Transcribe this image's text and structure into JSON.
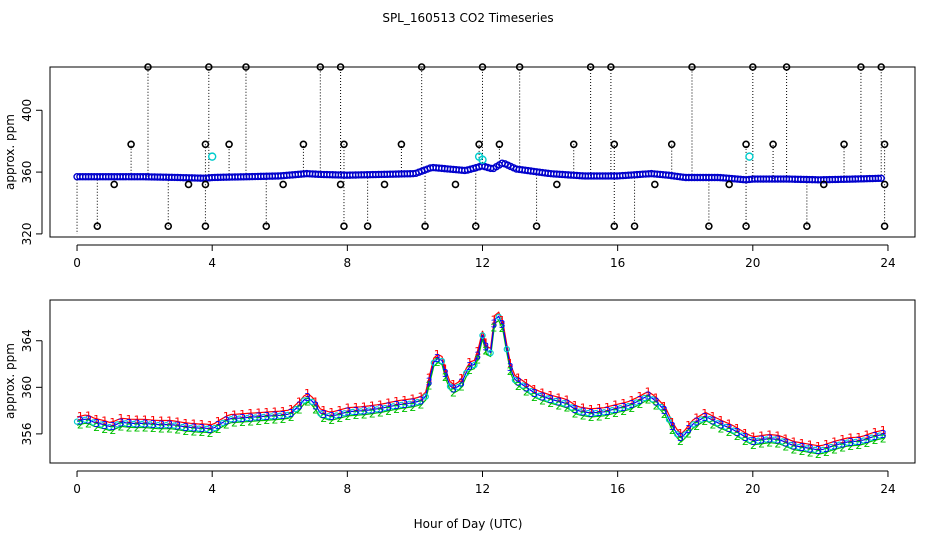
{
  "title": "SPL_160513  CO2 Timeseries",
  "xlabel": "Hour of Day (UTC)",
  "chart_data": [
    {
      "type": "scatter",
      "panel": "top",
      "ylabel": "approx. ppm",
      "xlim": [
        -0.8,
        24.8
      ],
      "ylim": [
        318,
        428
      ],
      "xticks": [
        0,
        4,
        8,
        12,
        16,
        20,
        24
      ],
      "yticks": [
        320,
        360,
        400
      ],
      "baseline": [
        [
          0,
          357
        ],
        [
          1,
          357
        ],
        [
          2,
          357
        ],
        [
          3,
          356.5
        ],
        [
          3.8,
          356
        ],
        [
          4,
          356.5
        ],
        [
          5,
          357
        ],
        [
          6,
          357.5
        ],
        [
          6.8,
          359
        ],
        [
          7.2,
          358.5
        ],
        [
          8,
          358
        ],
        [
          9,
          358.5
        ],
        [
          10,
          359
        ],
        [
          10.5,
          363
        ],
        [
          11,
          362
        ],
        [
          11.5,
          361
        ],
        [
          12,
          364
        ],
        [
          12.3,
          362
        ],
        [
          12.6,
          366
        ],
        [
          13,
          362
        ],
        [
          14,
          359
        ],
        [
          15,
          357.5
        ],
        [
          16,
          357.5
        ],
        [
          17,
          359
        ],
        [
          17.5,
          358
        ],
        [
          18,
          356.5
        ],
        [
          19,
          356.5
        ],
        [
          19.8,
          355
        ],
        [
          20,
          355.5
        ],
        [
          21,
          355.5
        ],
        [
          22,
          355
        ],
        [
          23,
          355.5
        ],
        [
          23.8,
          356
        ]
      ],
      "outliers_high": [
        [
          2.1,
          428
        ],
        [
          3.9,
          428
        ],
        [
          5.0,
          428
        ],
        [
          7.2,
          428
        ],
        [
          7.8,
          428
        ],
        [
          10.2,
          428
        ],
        [
          12.0,
          428
        ],
        [
          13.1,
          428
        ],
        [
          15.2,
          428
        ],
        [
          15.8,
          428
        ],
        [
          18.2,
          428
        ],
        [
          20.0,
          428
        ],
        [
          21.0,
          428
        ],
        [
          23.2,
          428
        ],
        [
          23.8,
          428
        ]
      ],
      "outliers_mid": [
        [
          1.6,
          378
        ],
        [
          3.8,
          378
        ],
        [
          4.5,
          378
        ],
        [
          6.7,
          378
        ],
        [
          7.9,
          378
        ],
        [
          9.6,
          378
        ],
        [
          11.9,
          378
        ],
        [
          12.5,
          378
        ],
        [
          14.7,
          378
        ],
        [
          15.9,
          378
        ],
        [
          17.6,
          378
        ],
        [
          19.8,
          378
        ],
        [
          20.6,
          378
        ],
        [
          22.7,
          378
        ],
        [
          23.9,
          378
        ]
      ],
      "outliers_low": [
        [
          0.6,
          325
        ],
        [
          2.7,
          325
        ],
        [
          3.8,
          325
        ],
        [
          5.6,
          325
        ],
        [
          7.9,
          325
        ],
        [
          8.6,
          325
        ],
        [
          10.3,
          325
        ],
        [
          11.8,
          325
        ],
        [
          13.6,
          325
        ],
        [
          15.9,
          325
        ],
        [
          16.5,
          325
        ],
        [
          18.7,
          325
        ],
        [
          19.8,
          325
        ],
        [
          21.6,
          325
        ],
        [
          23.9,
          325
        ]
      ],
      "dips": [
        [
          1.1,
          352
        ],
        [
          3.3,
          352
        ],
        [
          3.8,
          352
        ],
        [
          6.1,
          352
        ],
        [
          7.8,
          352
        ],
        [
          9.1,
          352
        ],
        [
          11.2,
          352
        ],
        [
          14.2,
          352
        ],
        [
          17.1,
          352
        ],
        [
          19.3,
          352
        ],
        [
          22.1,
          352
        ],
        [
          23.9,
          352
        ]
      ],
      "cyan_points": [
        [
          4.0,
          370
        ],
        [
          11.9,
          370
        ],
        [
          12.0,
          368
        ],
        [
          19.9,
          370
        ]
      ]
    },
    {
      "type": "line",
      "panel": "bottom",
      "ylabel": "approx. ppm",
      "xlim": [
        -0.8,
        24.8
      ],
      "ylim": [
        353.5,
        367.5
      ],
      "xticks": [
        0,
        4,
        8,
        12,
        16,
        20,
        24
      ],
      "yticks": [
        356,
        360,
        364
      ],
      "series": [
        {
          "name": "1",
          "color": "#ff0000",
          "marker": "1",
          "offset": 0.35
        },
        {
          "name": "2",
          "color": "#00c000",
          "marker": "2",
          "offset": -0.35
        },
        {
          "name": "3",
          "color": "#0000ff",
          "marker": "3",
          "offset": 0.0
        }
      ],
      "points": [
        [
          0,
          357.1
        ],
        [
          0.3,
          357.3
        ],
        [
          0.5,
          357.0
        ],
        [
          0.8,
          356.8
        ],
        [
          1.0,
          356.6
        ],
        [
          1.3,
          357.0
        ],
        [
          1.6,
          356.9
        ],
        [
          2.0,
          356.9
        ],
        [
          2.4,
          356.8
        ],
        [
          2.8,
          356.8
        ],
        [
          3.2,
          356.6
        ],
        [
          3.6,
          356.5
        ],
        [
          3.8,
          356.5
        ],
        [
          4.0,
          356.4
        ],
        [
          4.2,
          356.8
        ],
        [
          4.5,
          357.3
        ],
        [
          5.0,
          357.4
        ],
        [
          5.5,
          357.5
        ],
        [
          6.0,
          357.6
        ],
        [
          6.3,
          357.7
        ],
        [
          6.6,
          358.5
        ],
        [
          6.8,
          359.2
        ],
        [
          7.0,
          358.7
        ],
        [
          7.2,
          357.8
        ],
        [
          7.5,
          357.5
        ],
        [
          7.9,
          357.8
        ],
        [
          8.0,
          357.9
        ],
        [
          8.5,
          358.0
        ],
        [
          9.0,
          358.2
        ],
        [
          9.5,
          358.5
        ],
        [
          10.0,
          358.7
        ],
        [
          10.3,
          359.0
        ],
        [
          10.5,
          361.5
        ],
        [
          10.6,
          362.6
        ],
        [
          10.8,
          362.3
        ],
        [
          11.0,
          360.2
        ],
        [
          11.2,
          359.8
        ],
        [
          11.4,
          360.5
        ],
        [
          11.6,
          361.8
        ],
        [
          11.8,
          362.0
        ],
        [
          12.0,
          364.5
        ],
        [
          12.1,
          363.5
        ],
        [
          12.2,
          361.8
        ],
        [
          12.3,
          364.8
        ],
        [
          12.4,
          366.5
        ],
        [
          12.5,
          366.0
        ],
        [
          12.6,
          365.3
        ],
        [
          12.8,
          362.0
        ],
        [
          12.9,
          360.8
        ],
        [
          13.2,
          360.2
        ],
        [
          13.6,
          359.4
        ],
        [
          14.0,
          359.0
        ],
        [
          14.5,
          358.6
        ],
        [
          14.8,
          358.0
        ],
        [
          15.2,
          357.8
        ],
        [
          15.6,
          357.9
        ],
        [
          16.0,
          358.2
        ],
        [
          16.3,
          358.4
        ],
        [
          16.6,
          358.8
        ],
        [
          16.9,
          359.3
        ],
        [
          17.1,
          358.9
        ],
        [
          17.4,
          358.0
        ],
        [
          17.7,
          356.2
        ],
        [
          17.9,
          355.6
        ],
        [
          18.2,
          356.8
        ],
        [
          18.6,
          357.5
        ],
        [
          19.0,
          356.9
        ],
        [
          19.4,
          356.4
        ],
        [
          19.8,
          355.7
        ],
        [
          20.0,
          355.4
        ],
        [
          20.5,
          355.6
        ],
        [
          20.8,
          355.5
        ],
        [
          21.2,
          355.0
        ],
        [
          21.6,
          354.8
        ],
        [
          22.0,
          354.6
        ],
        [
          22.4,
          355.0
        ],
        [
          22.8,
          355.3
        ],
        [
          23.2,
          355.4
        ],
        [
          23.6,
          355.8
        ],
        [
          23.9,
          356.0
        ]
      ]
    }
  ]
}
